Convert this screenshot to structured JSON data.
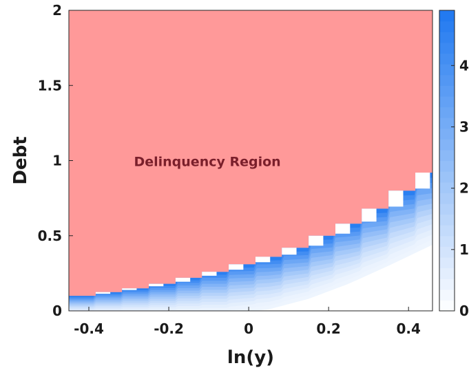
{
  "chart_data": {
    "type": "heatmap",
    "xlabel": "ln(y)",
    "ylabel": "Debt",
    "xlim": [
      -0.45,
      0.46
    ],
    "ylim": [
      0,
      2
    ],
    "x_ticks": [
      "-0.4",
      "-0.2",
      "0",
      "0.2",
      "0.4"
    ],
    "x_tick_values": [
      -0.4,
      -0.2,
      0,
      0.2,
      0.4
    ],
    "y_ticks": [
      "0",
      "0.5",
      "1",
      "1.5",
      "2"
    ],
    "y_tick_values": [
      0,
      0.5,
      1,
      1.5,
      2
    ],
    "annotation": "Delinquency Region",
    "delinquency_color": "#ff9999",
    "annotation_color": "#7a1f2b",
    "colormap": [
      "#ffffff",
      "#1f78f0"
    ],
    "colorbar": {
      "ticks": [
        "0",
        "1",
        "2",
        "3",
        "4"
      ],
      "tick_values": [
        0,
        1,
        2,
        3,
        4
      ],
      "range": [
        0,
        4.9
      ]
    },
    "boundary": {
      "x": [
        -0.45,
        -0.383,
        -0.317,
        -0.25,
        -0.183,
        -0.117,
        -0.05,
        0.017,
        0.083,
        0.15,
        0.217,
        0.283,
        0.35,
        0.417
      ],
      "y": [
        0.1,
        0.125,
        0.15,
        0.18,
        0.22,
        0.26,
        0.31,
        0.36,
        0.42,
        0.5,
        0.58,
        0.68,
        0.8,
        0.92
      ],
      "step_width": 0.0667,
      "step_x_end": 0.46,
      "bottom_x": [
        -0.45,
        -0.35,
        -0.25,
        -0.15,
        -0.05,
        0.05,
        0.15,
        0.25,
        0.35,
        0.46
      ],
      "bottom_y": [
        0.0,
        0.0,
        0.0,
        0.0,
        0.0,
        0.03,
        0.1,
        0.2,
        0.32,
        0.46
      ]
    }
  }
}
